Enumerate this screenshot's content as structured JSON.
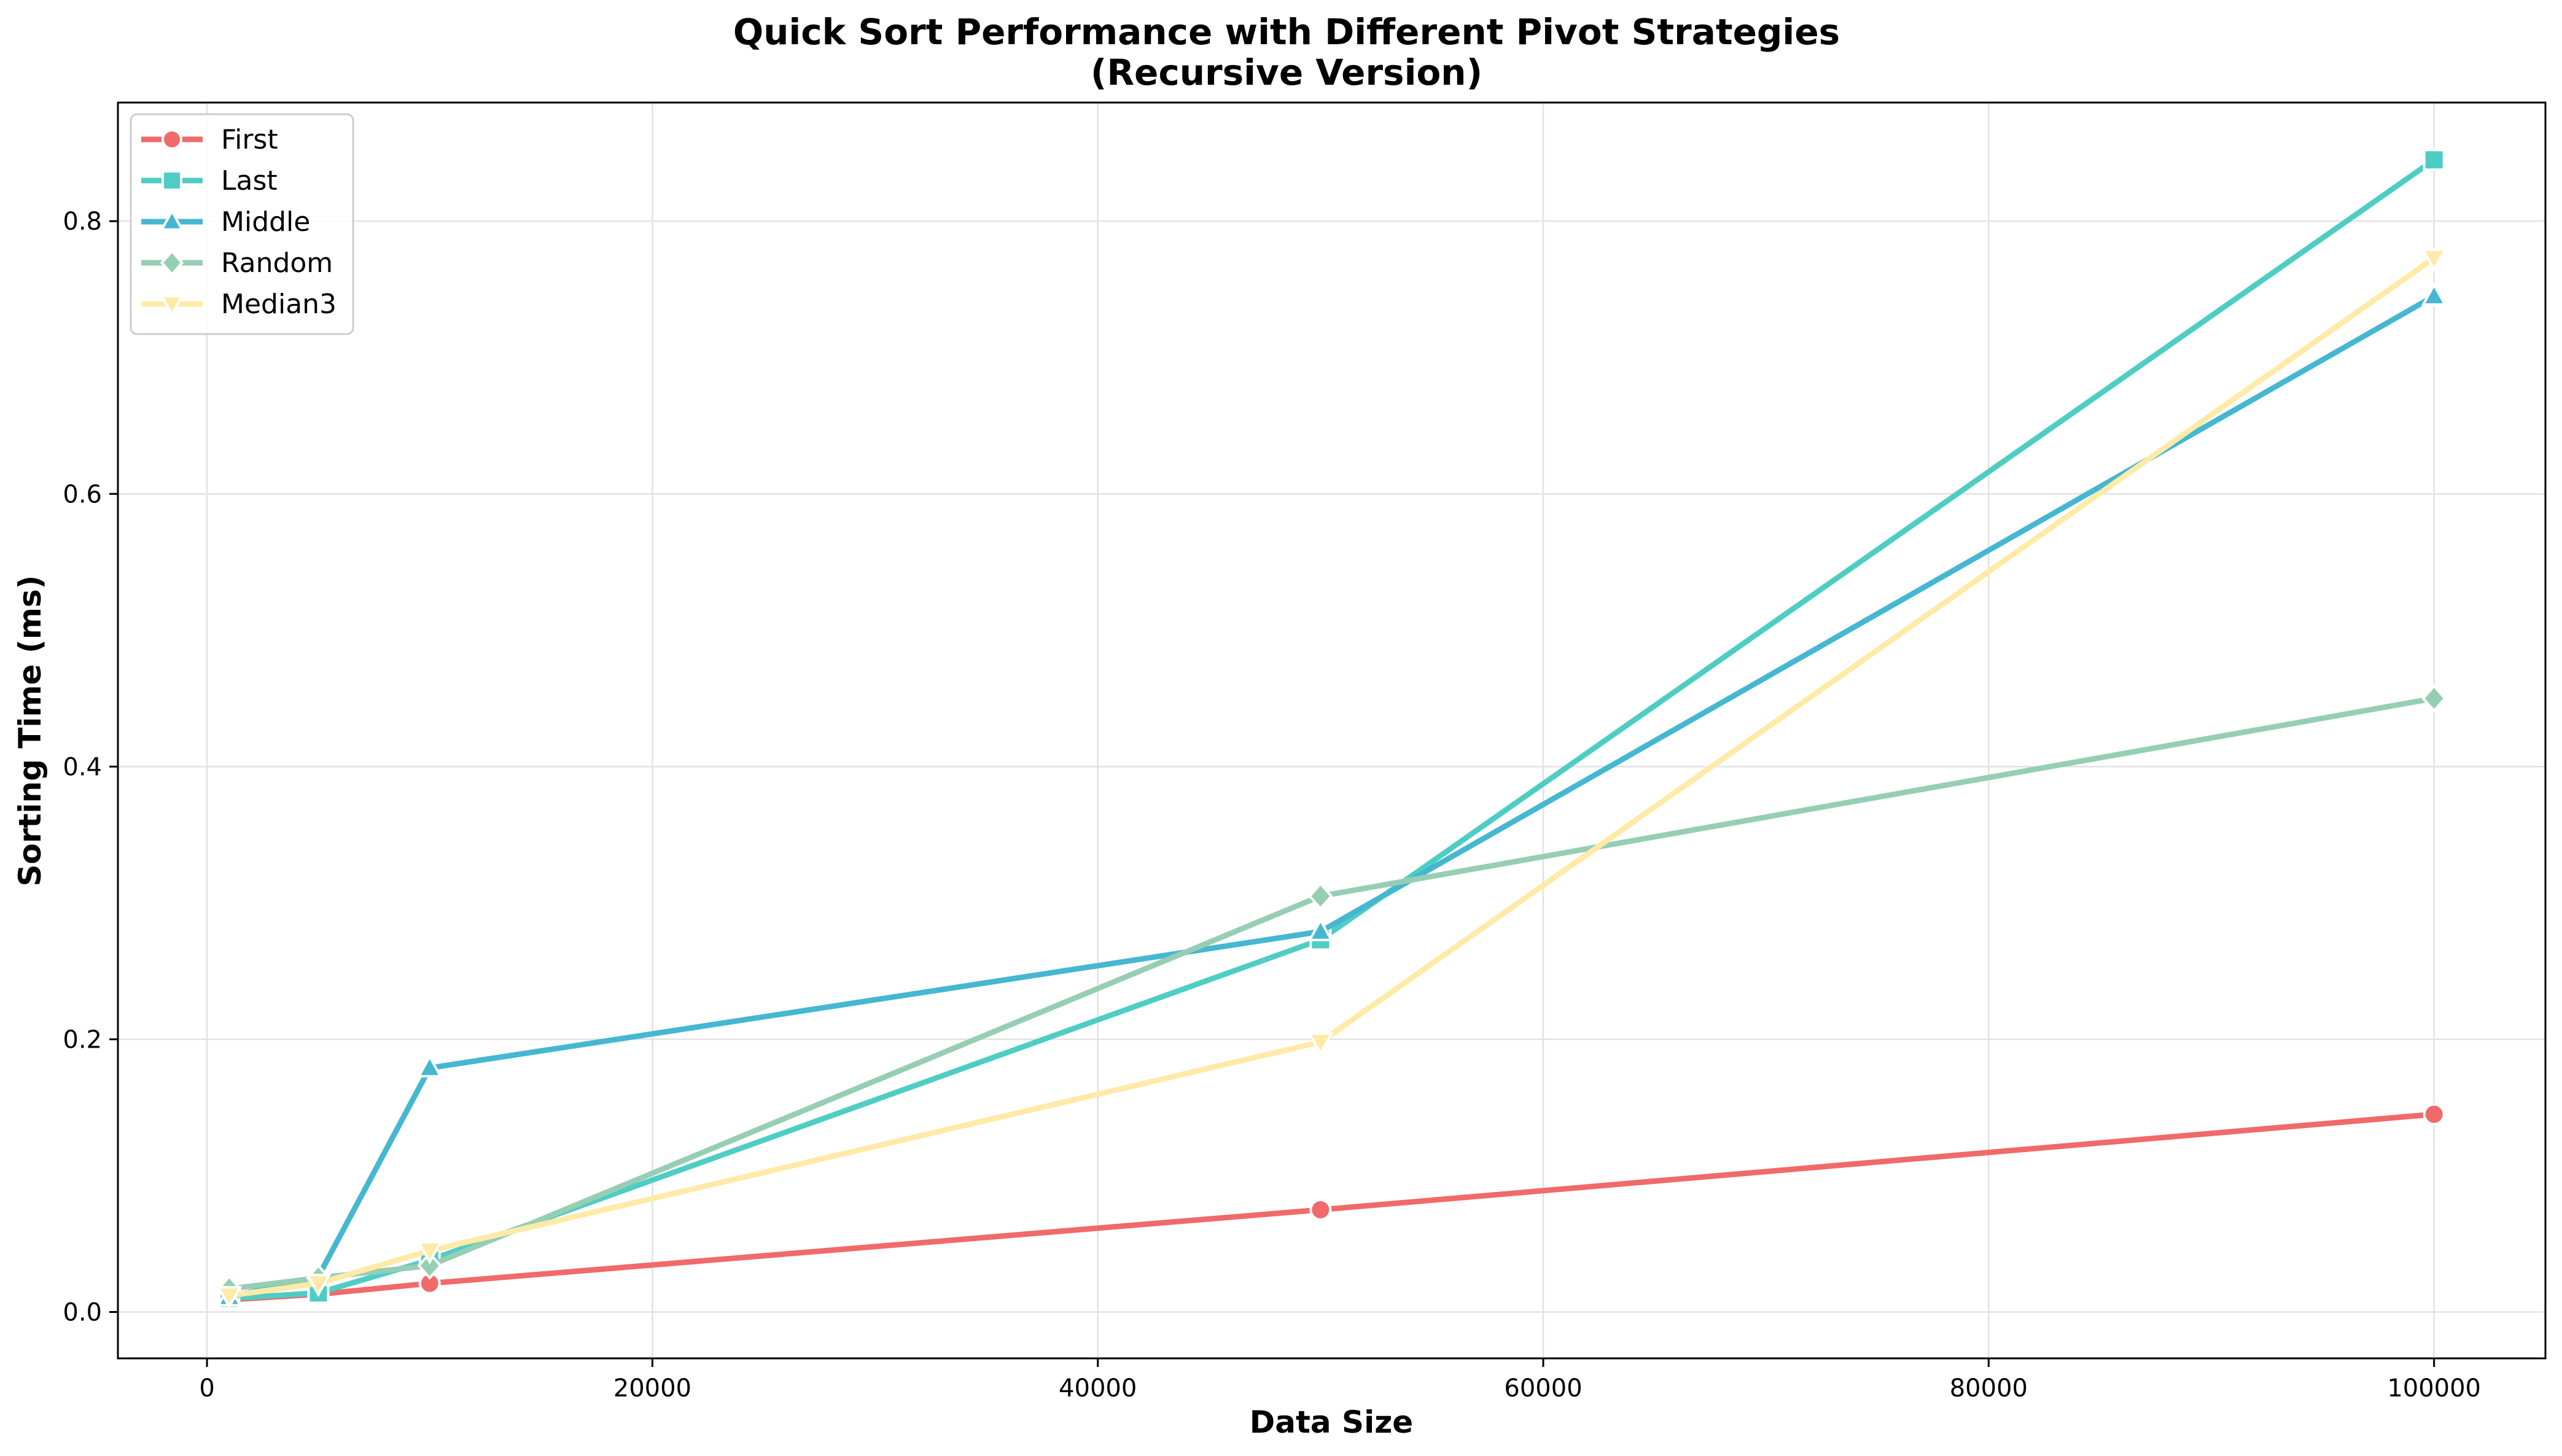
{
  "chart_data": {
    "type": "line",
    "title": "Quick Sort Performance with Different Pivot Strategies",
    "subtitle": "(Recursive Version)",
    "xlabel": "Data Size",
    "ylabel": "Sorting Time (ms)",
    "x": [
      1000,
      5000,
      10000,
      50000,
      100000
    ],
    "xlim": [
      -4000,
      105000
    ],
    "ylim": [
      -0.034,
      0.887
    ],
    "xticks": [
      0,
      20000,
      40000,
      60000,
      80000,
      100000
    ],
    "yticks": [
      0.0,
      0.2,
      0.4,
      0.6,
      0.8
    ],
    "xtick_labels": [
      "0",
      "20000",
      "40000",
      "60000",
      "80000",
      "100000"
    ],
    "ytick_labels": [
      "0.0",
      "0.2",
      "0.4",
      "0.6",
      "0.8"
    ],
    "grid": true,
    "legend_position": "top-left",
    "series": [
      {
        "name": "First",
        "color": "#f06a6a",
        "marker": "circle",
        "values": [
          0.009,
          0.013,
          0.021,
          0.075,
          0.145
        ]
      },
      {
        "name": "Last",
        "color": "#4ecdc4",
        "marker": "square",
        "values": [
          0.01,
          0.014,
          0.038,
          0.273,
          0.845
        ]
      },
      {
        "name": "Middle",
        "color": "#45b7d1",
        "marker": "triangle-up",
        "values": [
          0.011,
          0.026,
          0.179,
          0.279,
          0.745
        ]
      },
      {
        "name": "Random",
        "color": "#96ceb4",
        "marker": "diamond",
        "values": [
          0.017,
          0.025,
          0.034,
          0.305,
          0.45
        ]
      },
      {
        "name": "Median3",
        "color": "#ffeaa7",
        "marker": "triangle-down",
        "values": [
          0.012,
          0.021,
          0.045,
          0.198,
          0.773
        ]
      }
    ]
  }
}
